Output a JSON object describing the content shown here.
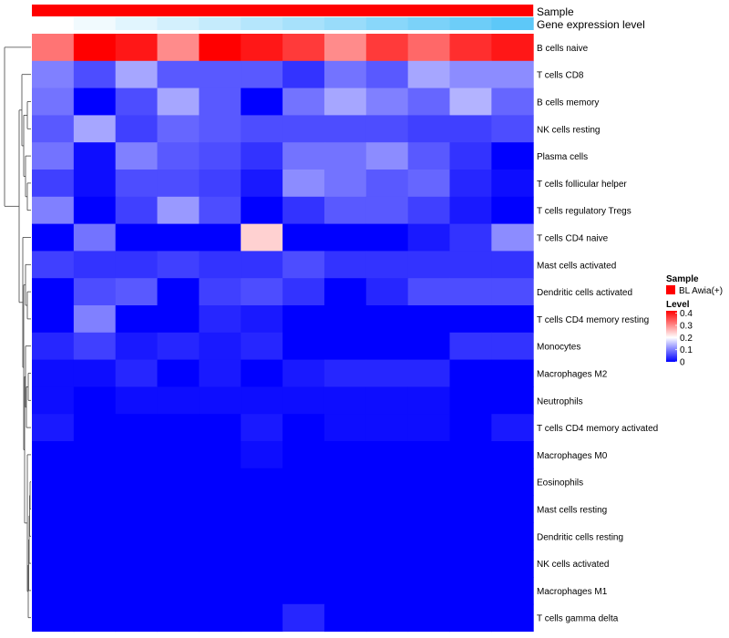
{
  "chart_data": {
    "type": "heatmap",
    "title": "",
    "annotation_rows": [
      {
        "name": "Sample",
        "label": "Sample"
      },
      {
        "name": "Gene expression level",
        "label": "Gene expression level"
      }
    ],
    "sample_group": "BL Awia(+)",
    "gene_expression_level": [
      0,
      0.08,
      0.17,
      0.25,
      0.33,
      0.42,
      0.5,
      0.58,
      0.67,
      0.75,
      0.83,
      0.92,
      1
    ],
    "row_labels": [
      "B cells naive",
      "T cells CD8",
      "B cells memory",
      "NK cells resting",
      "Plasma cells",
      "T cells follicular helper",
      "T cells regulatory  Tregs",
      "T cells CD4 naive",
      "Mast cells activated",
      "Dendritic cells activated",
      "T cells CD4 memory resting",
      "Monocytes",
      "Macrophages M2",
      "Neutrophils",
      "T cells CD4 memory activated",
      "Macrophages M0",
      "Eosinophils",
      "Mast cells resting",
      "Dendritic cells resting",
      "NK cells activated",
      "Macrophages M1",
      "T cells gamma delta"
    ],
    "n_columns": 12,
    "values": [
      [
        0.32,
        0.42,
        0.4,
        0.3,
        0.42,
        0.4,
        0.37,
        0.3,
        0.37,
        0.33,
        0.38,
        0.4
      ],
      [
        0.1,
        0.06,
        0.13,
        0.07,
        0.07,
        0.07,
        0.04,
        0.09,
        0.07,
        0.13,
        0.11,
        0.11
      ],
      [
        0.09,
        0.0,
        0.06,
        0.13,
        0.07,
        0.0,
        0.09,
        0.13,
        0.1,
        0.08,
        0.14,
        0.08
      ],
      [
        0.07,
        0.13,
        0.05,
        0.08,
        0.07,
        0.06,
        0.06,
        0.06,
        0.06,
        0.05,
        0.05,
        0.06
      ],
      [
        0.09,
        0.01,
        0.1,
        0.07,
        0.06,
        0.04,
        0.09,
        0.09,
        0.11,
        0.07,
        0.04,
        0.0
      ],
      [
        0.05,
        0.01,
        0.06,
        0.06,
        0.05,
        0.02,
        0.11,
        0.09,
        0.07,
        0.08,
        0.03,
        0.01
      ],
      [
        0.1,
        0.0,
        0.05,
        0.12,
        0.06,
        0.0,
        0.04,
        0.07,
        0.07,
        0.05,
        0.02,
        0.0
      ],
      [
        0.0,
        0.09,
        0.0,
        0.0,
        0.0,
        0.24,
        0.0,
        0.0,
        0.0,
        0.02,
        0.04,
        0.11
      ],
      [
        0.05,
        0.04,
        0.04,
        0.05,
        0.04,
        0.04,
        0.06,
        0.04,
        0.04,
        0.04,
        0.04,
        0.04
      ],
      [
        0.0,
        0.06,
        0.07,
        0.0,
        0.05,
        0.06,
        0.04,
        0.0,
        0.03,
        0.06,
        0.06,
        0.06
      ],
      [
        0.0,
        0.1,
        0.0,
        0.0,
        0.03,
        0.02,
        0.0,
        0.0,
        0.0,
        0.0,
        0.0,
        0.0
      ],
      [
        0.03,
        0.05,
        0.02,
        0.03,
        0.02,
        0.03,
        0.0,
        0.0,
        0.0,
        0.0,
        0.04,
        0.04
      ],
      [
        0.01,
        0.01,
        0.03,
        0.0,
        0.02,
        0.0,
        0.02,
        0.03,
        0.03,
        0.03,
        0.0,
        0.0
      ],
      [
        0.01,
        0.0,
        0.01,
        0.01,
        0.01,
        0.01,
        0.01,
        0.01,
        0.01,
        0.01,
        0.0,
        0.0
      ],
      [
        0.02,
        0.0,
        0.0,
        0.0,
        0.0,
        0.02,
        0.0,
        0.01,
        0.01,
        0.01,
        0.0,
        0.02
      ],
      [
        0.0,
        0.0,
        0.0,
        0.0,
        0.0,
        0.01,
        0.0,
        0.0,
        0.0,
        0.0,
        0.0,
        0.0
      ],
      [
        0.0,
        0.0,
        0.0,
        0.0,
        0.0,
        0.0,
        0.0,
        0.0,
        0.0,
        0.0,
        0.0,
        0.0
      ],
      [
        0.0,
        0.0,
        0.0,
        0.0,
        0.0,
        0.0,
        0.0,
        0.0,
        0.0,
        0.0,
        0.0,
        0.0
      ],
      [
        0.0,
        0.0,
        0.0,
        0.0,
        0.0,
        0.0,
        0.0,
        0.0,
        0.0,
        0.0,
        0.0,
        0.0
      ],
      [
        0.0,
        0.0,
        0.0,
        0.0,
        0.0,
        0.0,
        0.0,
        0.0,
        0.0,
        0.0,
        0.0,
        0.0
      ],
      [
        0.0,
        0.0,
        0.0,
        0.0,
        0.0,
        0.0,
        0.0,
        0.0,
        0.0,
        0.0,
        0.0,
        0.0
      ],
      [
        0.0,
        0.0,
        0.0,
        0.0,
        0.0,
        0.0,
        0.03,
        0.0,
        0.0,
        0.0,
        0.0,
        0.0
      ]
    ],
    "color_scale": {
      "stops": [
        {
          "value": 0,
          "color": "#0000ff"
        },
        {
          "value": 0.2,
          "color": "#ffffff"
        },
        {
          "value": 0.42,
          "color": "#ff0000"
        }
      ]
    },
    "legend": {
      "sample_title": "Sample",
      "sample_entry": "BL Awia(+)",
      "sample_color": "#ff0000",
      "level_title": "Level",
      "ticks": [
        "0.4",
        "0.3",
        "0.2",
        "0.1",
        "0"
      ],
      "tick_values": [
        0.4,
        0.3,
        0.2,
        0.1,
        0
      ]
    },
    "annotation_colors": {
      "sample": "#ff0000",
      "expr_low": "#ffffff",
      "expr_high": "#4fc3f7"
    },
    "dendrogram": "row clustering tree on left"
  }
}
